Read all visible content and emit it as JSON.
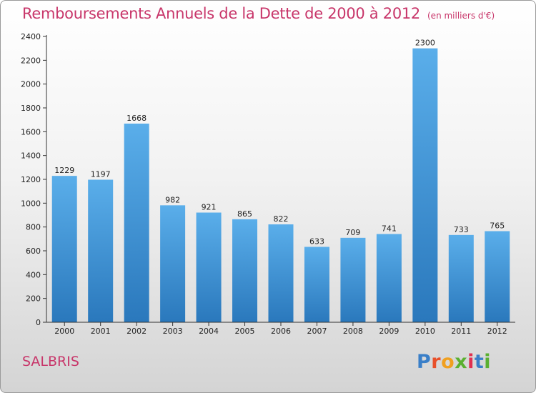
{
  "header": {
    "title": "Remboursements Annuels de la Dette de 2000 à 2012",
    "subtitle": "(en milliers d'€)"
  },
  "footer": {
    "commune": "SALBRIS",
    "brand": "Proxiti",
    "brand_letter_colors": [
      "#3a7fc8",
      "#e8502a",
      "#f0a020",
      "#5ab030",
      "#e03050",
      "#3a7fc8",
      "#5ab030"
    ]
  },
  "chart_data": {
    "type": "bar",
    "title": "Remboursements Annuels de la Dette de 2000 à 2012",
    "xlabel": "",
    "ylabel": "",
    "categories": [
      "2000",
      "2001",
      "2002",
      "2003",
      "2004",
      "2005",
      "2006",
      "2007",
      "2008",
      "2009",
      "2010",
      "2011",
      "2012"
    ],
    "values": [
      1229,
      1197,
      1668,
      982,
      921,
      865,
      822,
      633,
      709,
      741,
      2300,
      733,
      765
    ],
    "ylim": [
      0,
      2400
    ],
    "yticks": [
      0,
      200,
      400,
      600,
      800,
      1000,
      1200,
      1400,
      1600,
      1800,
      2000,
      2200,
      2400
    ],
    "grid": false,
    "bar_color_top": "#5aaeea",
    "bar_color_bottom": "#2a78bc"
  }
}
